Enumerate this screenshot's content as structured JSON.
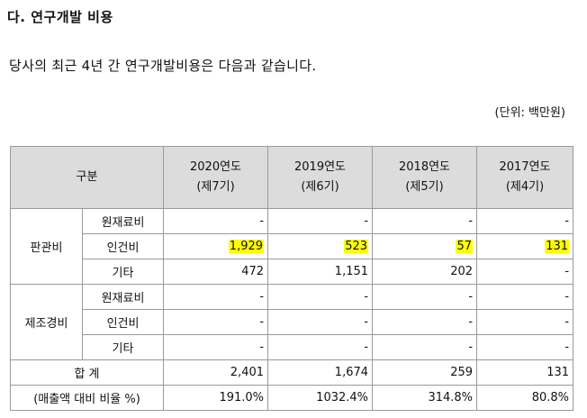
{
  "heading": "다. 연구개발 비용",
  "intro": "당사의 최근 4년 간 연구개발비용은 다음과 같습니다.",
  "unit": "(단위: 백만원)",
  "table": {
    "header_label": "구분",
    "years": [
      {
        "year": "2020연도",
        "period": "(제7기)"
      },
      {
        "year": "2019연도",
        "period": "(제6기)"
      },
      {
        "year": "2018연도",
        "period": "(제5기)"
      },
      {
        "year": "2017연도",
        "period": "(제4기)"
      }
    ],
    "groups": [
      {
        "label": "판관비",
        "rows": [
          {
            "item": "원재료비",
            "values": [
              "-",
              "-",
              "-",
              "-"
            ]
          },
          {
            "item": "인건비",
            "values": [
              "1,929",
              "523",
              "57",
              "131"
            ]
          },
          {
            "item": "기타",
            "values": [
              "472",
              "1,151",
              "202",
              "-"
            ]
          }
        ]
      },
      {
        "label": "제조경비",
        "rows": [
          {
            "item": "원재료비",
            "values": [
              "-",
              "-",
              "-",
              "-"
            ]
          },
          {
            "item": "인건비",
            "values": [
              "-",
              "-",
              "-",
              "-"
            ]
          },
          {
            "item": "기타",
            "values": [
              "-",
              "-",
              "-",
              "-"
            ]
          }
        ]
      }
    ],
    "total": {
      "label": "합 계",
      "values": [
        "2,401",
        "1,674",
        "259",
        "131"
      ]
    },
    "ratio": {
      "label": "(매출액 대비 비율 %)",
      "values": [
        "191.0%",
        "1032.4%",
        "314.8%",
        "80.8%"
      ]
    }
  },
  "highlight_color": "#ffff00"
}
